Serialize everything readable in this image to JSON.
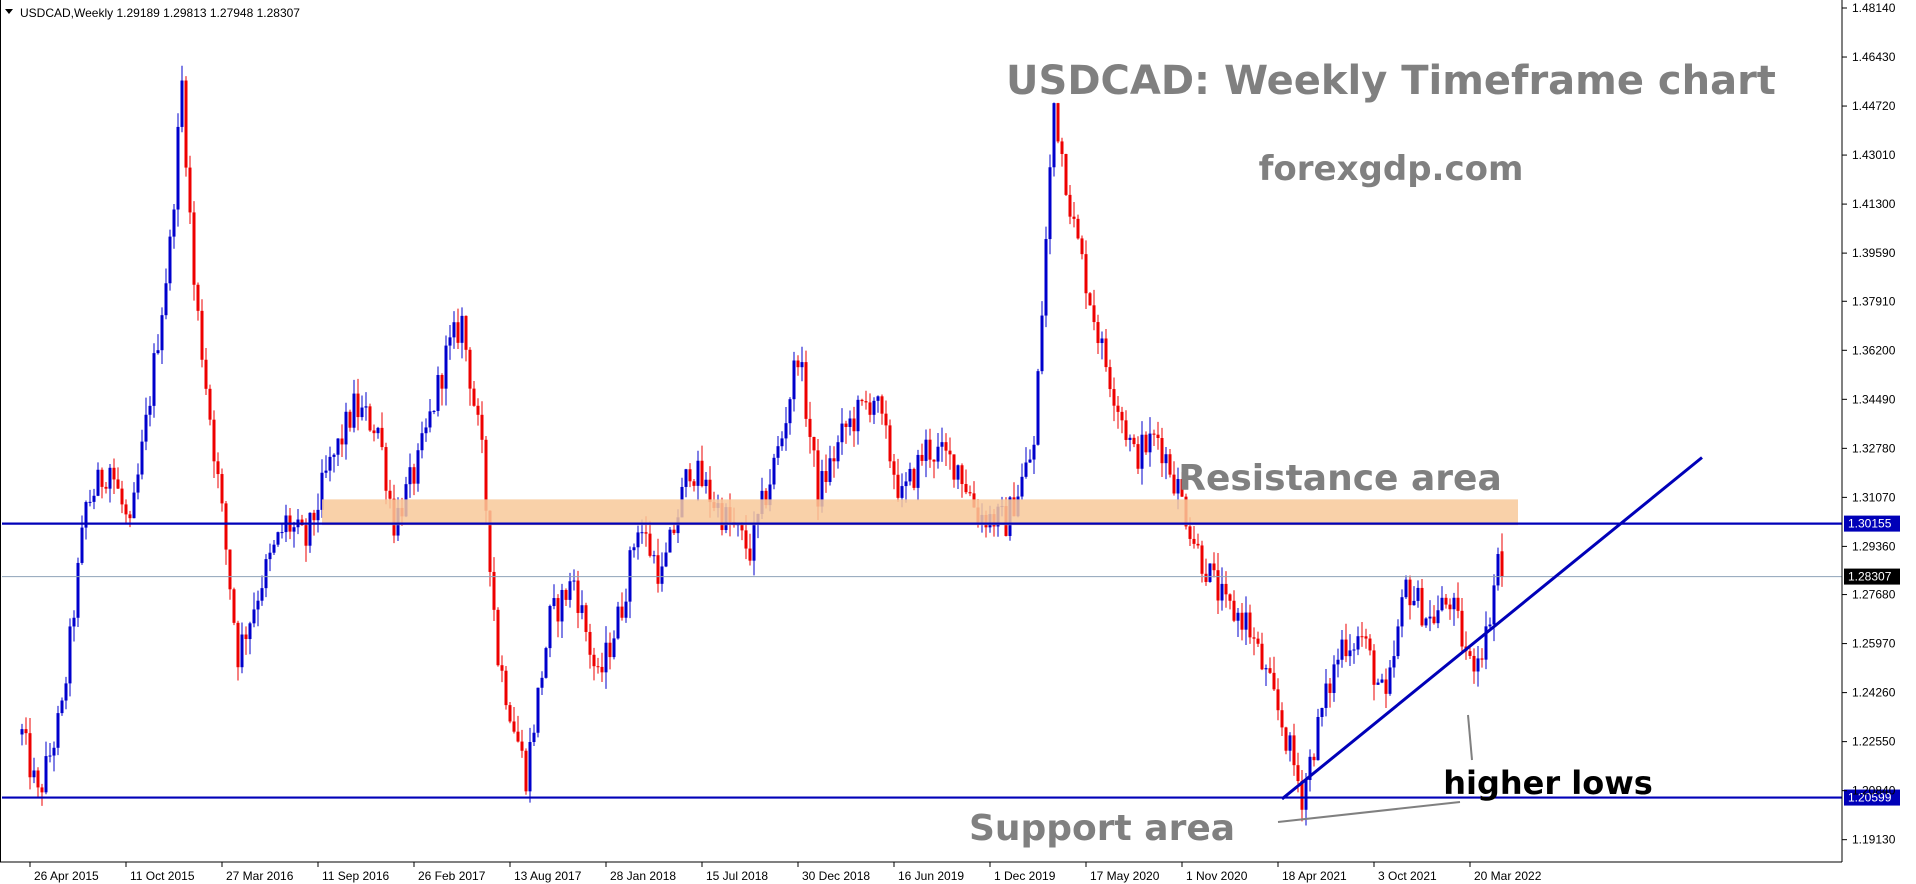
{
  "header": {
    "symbol_line": "USDCAD,Weekly  1.29189 1.29813 1.27948 1.28307"
  },
  "colors": {
    "bull": "#0000cc",
    "bear": "#ee0000",
    "grid_line": "#0000b8",
    "resistance_zone": "#f8c99a",
    "annotation_text": "#808080",
    "price_badge_bg": "#000000"
  },
  "chart_data": {
    "type": "candlestick",
    "title": "USDCAD: Weekly Timeframe chart",
    "subtitle": "forexgdp.com",
    "timeframe": "Weekly",
    "current_bar": {
      "open": 1.29189,
      "high": 1.29813,
      "low": 1.27948,
      "close": 1.28307
    },
    "y_ticks": [
      "1.48140",
      "1.46430",
      "1.44720",
      "1.43010",
      "1.41300",
      "1.39590",
      "1.37910",
      "1.36200",
      "1.34490",
      "1.32780",
      "1.31070",
      "1.29360",
      "1.27680",
      "1.25970",
      "1.24260",
      "1.22550",
      "1.20840",
      "1.19130"
    ],
    "ylim": [
      1.187,
      1.4814
    ],
    "x_ticks": [
      "26 Apr 2015",
      "11 Oct 2015",
      "27 Mar 2016",
      "11 Sep 2016",
      "26 Feb 2017",
      "13 Aug 2017",
      "28 Jan 2018",
      "15 Jul 2018",
      "30 Dec 2018",
      "16 Jun 2019",
      "1 Dec 2019",
      "17 May 2020",
      "1 Nov 2020",
      "18 Apr 2021",
      "3 Oct 2021",
      "20 Mar 2022"
    ],
    "x_tick_dates": [
      "2015-04-26",
      "2015-10-11",
      "2016-03-27",
      "2016-09-11",
      "2017-02-26",
      "2017-08-13",
      "2018-01-28",
      "2018-07-15",
      "2018-12-30",
      "2019-06-16",
      "2019-12-01",
      "2020-05-17",
      "2020-11-01",
      "2021-04-18",
      "2021-10-03",
      "2022-03-20"
    ],
    "price_path": [
      [
        "2015-04-12",
        1.228
      ],
      [
        "2015-05-10",
        1.206
      ],
      [
        "2015-06-21",
        1.236
      ],
      [
        "2015-08-02",
        1.308
      ],
      [
        "2015-09-13",
        1.322
      ],
      [
        "2015-10-18",
        1.298
      ],
      [
        "2015-11-15",
        1.336
      ],
      [
        "2015-12-27",
        1.398
      ],
      [
        "2016-01-17",
        1.455
      ],
      [
        "2016-02-07",
        1.385
      ],
      [
        "2016-03-27",
        1.305
      ],
      [
        "2016-04-24",
        1.256
      ],
      [
        "2016-06-05",
        1.282
      ],
      [
        "2016-07-17",
        1.302
      ],
      [
        "2016-08-21",
        1.295
      ],
      [
        "2016-09-25",
        1.318
      ],
      [
        "2016-11-13",
        1.342
      ],
      [
        "2016-12-25",
        1.335
      ],
      [
        "2017-01-22",
        1.302
      ],
      [
        "2017-03-05",
        1.322
      ],
      [
        "2017-04-23",
        1.36
      ],
      [
        "2017-05-21",
        1.372
      ],
      [
        "2017-06-25",
        1.325
      ],
      [
        "2017-07-23",
        1.255
      ],
      [
        "2017-09-10",
        1.214
      ],
      [
        "2017-10-22",
        1.268
      ],
      [
        "2017-12-03",
        1.282
      ],
      [
        "2018-01-14",
        1.246
      ],
      [
        "2018-02-25",
        1.273
      ],
      [
        "2018-03-25",
        1.302
      ],
      [
        "2018-05-06",
        1.283
      ],
      [
        "2018-06-24",
        1.322
      ],
      [
        "2018-08-19",
        1.305
      ],
      [
        "2018-10-07",
        1.292
      ],
      [
        "2018-12-02",
        1.332
      ],
      [
        "2018-12-30",
        1.362
      ],
      [
        "2019-02-03",
        1.312
      ],
      [
        "2019-03-24",
        1.335
      ],
      [
        "2019-05-12",
        1.346
      ],
      [
        "2019-06-30",
        1.31
      ],
      [
        "2019-08-11",
        1.328
      ],
      [
        "2019-10-06",
        1.322
      ],
      [
        "2019-11-10",
        1.305
      ],
      [
        "2019-12-29",
        1.302
      ],
      [
        "2020-02-16",
        1.328
      ],
      [
        "2020-03-22",
        1.448
      ],
      [
        "2020-04-26",
        1.405
      ],
      [
        "2020-06-14",
        1.362
      ],
      [
        "2020-08-09",
        1.325
      ],
      [
        "2020-09-20",
        1.332
      ],
      [
        "2020-10-25",
        1.314
      ],
      [
        "2020-11-29",
        1.292
      ],
      [
        "2021-01-17",
        1.272
      ],
      [
        "2021-02-21",
        1.268
      ],
      [
        "2021-03-21",
        1.252
      ],
      [
        "2021-04-25",
        1.232
      ],
      [
        "2021-05-30",
        1.207
      ],
      [
        "2021-07-04",
        1.236
      ],
      [
        "2021-08-08",
        1.26
      ],
      [
        "2021-09-12",
        1.262
      ],
      [
        "2021-10-24",
        1.238
      ],
      [
        "2021-11-28",
        1.28
      ],
      [
        "2022-01-09",
        1.268
      ],
      [
        "2022-02-13",
        1.275
      ],
      [
        "2022-03-20",
        1.252
      ],
      [
        "2022-04-17",
        1.262
      ],
      [
        "2022-05-08",
        1.29
      ],
      [
        "2022-05-15",
        1.283
      ]
    ],
    "horizontal_lines": [
      {
        "name": "resistance-line",
        "price": 1.30155,
        "label": "1.30155"
      },
      {
        "name": "support-line",
        "price": 1.20599,
        "label": "1.20599"
      },
      {
        "name": "current-price-line",
        "price": 1.28307,
        "label": "1.28307"
      }
    ],
    "resistance_zone": {
      "from": "2016-09-18",
      "to": "2022-06-12",
      "low": 1.301,
      "high": 1.31
    },
    "trendline": {
      "from": [
        "2021-04-25",
        1.2055
      ],
      "to": [
        "2023-04-30",
        1.3246
      ]
    },
    "annotations": {
      "resistance": "Resistance area",
      "support": "Support area",
      "higher_lows": "higher lows"
    },
    "grid": false,
    "legend": "none"
  }
}
